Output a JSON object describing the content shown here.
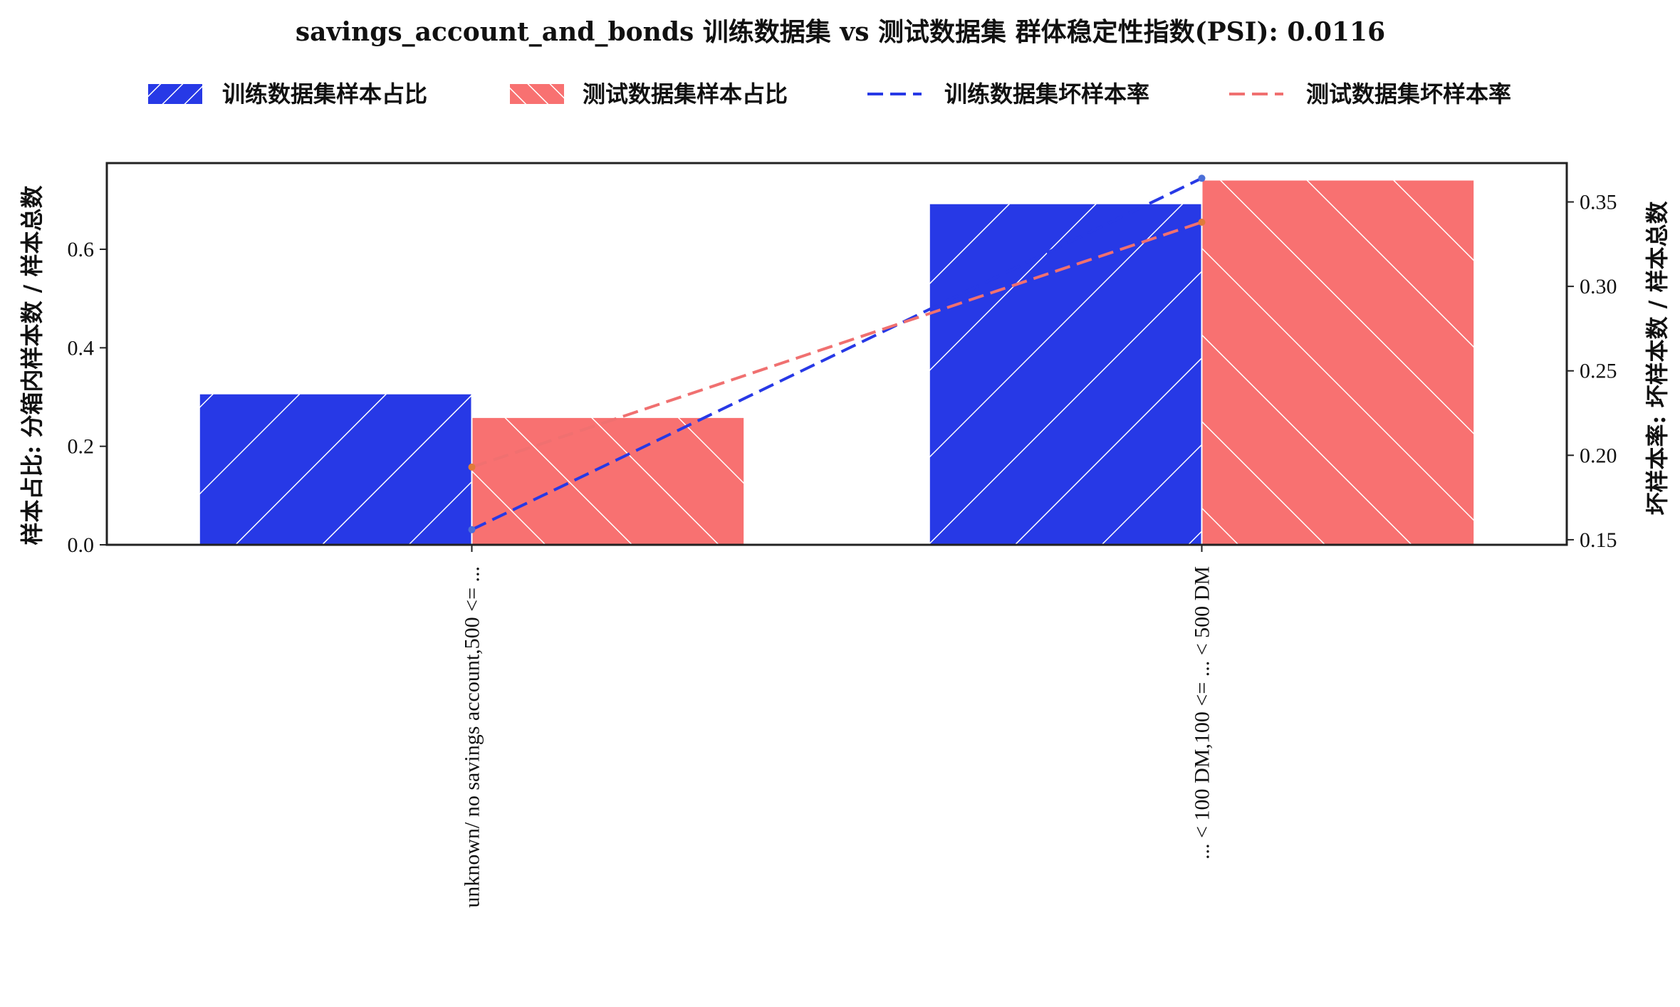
{
  "chart_data": {
    "type": "bar",
    "title": "savings_account_and_bonds 训练数据集 vs 测试数据集 群体稳定性指数(PSI): 0.0116",
    "categories": [
      "unknown/ no savings account,500 <= ...",
      "... < 100 DM,100 <= ... < 500 DM"
    ],
    "series": [
      {
        "name": "训练数据集样本占比",
        "kind": "bar",
        "axis": "left",
        "values": [
          0.307,
          0.693
        ],
        "color": "#2739e6",
        "hatch": "forward"
      },
      {
        "name": "测试数据集样本占比",
        "kind": "bar",
        "axis": "left",
        "values": [
          0.259,
          0.741
        ],
        "color": "#f87171",
        "hatch": "backward"
      },
      {
        "name": "训练数据集坏样本率",
        "kind": "line",
        "axis": "right",
        "values": [
          0.156,
          0.364
        ],
        "color": "#2739e6",
        "marker": "#4a6ed8"
      },
      {
        "name": "测试数据集坏样本率",
        "kind": "line",
        "axis": "right",
        "values": [
          0.193,
          0.338
        ],
        "color": "#f07070",
        "marker": "#e07a3a"
      }
    ],
    "ylabel_left": "样本占比: 分箱内样本数 / 样本总数",
    "ylabel_right": "坏样本率: 坏样本数 / 样本总数",
    "ylim_left": [
      0,
      0.775
    ],
    "ylim_right": [
      0.147,
      0.373
    ],
    "yticks_left": [
      "0.0",
      "0.2",
      "0.4",
      "0.6"
    ],
    "yticks_left_values": [
      0.0,
      0.2,
      0.4,
      0.6
    ],
    "yticks_right": [
      "0.15",
      "0.20",
      "0.25",
      "0.30",
      "0.35"
    ],
    "yticks_right_values": [
      0.15,
      0.2,
      0.25,
      0.3,
      0.35
    ],
    "legend_position": "top-center",
    "grid": false
  }
}
